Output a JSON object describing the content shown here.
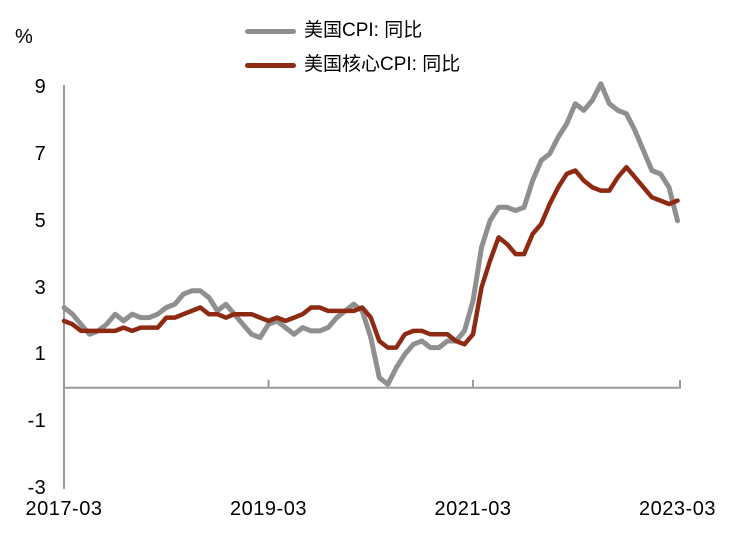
{
  "chart_data": {
    "type": "line",
    "title": "",
    "unit_label": "%",
    "xlabel": "",
    "ylabel": "%",
    "ylim": [
      -3,
      9
    ],
    "y_ticks": [
      9,
      7,
      5,
      3,
      1,
      -1,
      -3
    ],
    "x_tick_labels": [
      "2017-03",
      "2019-03",
      "2021-03",
      "2023-03"
    ],
    "x_tick_month_index": [
      0,
      24,
      48,
      72
    ],
    "x_range": "2017-03 to 2023-03, monthly",
    "grid": "off",
    "legend_position": "top-center",
    "axis_color": "#9b9b9b",
    "series": [
      {
        "name": "美国CPI: 同比",
        "color": "#8f8f8f",
        "stroke_width": 5,
        "values": [
          2.4,
          2.2,
          1.9,
          1.6,
          1.7,
          1.9,
          2.2,
          2.0,
          2.2,
          2.1,
          2.1,
          2.2,
          2.4,
          2.5,
          2.8,
          2.9,
          2.9,
          2.7,
          2.3,
          2.5,
          2.2,
          1.9,
          1.6,
          1.5,
          1.9,
          2.0,
          1.8,
          1.6,
          1.8,
          1.7,
          1.7,
          1.8,
          2.1,
          2.3,
          2.5,
          2.3,
          1.5,
          0.3,
          0.1,
          0.6,
          1.0,
          1.3,
          1.4,
          1.2,
          1.2,
          1.4,
          1.4,
          1.7,
          2.6,
          4.2,
          5.0,
          5.4,
          5.4,
          5.3,
          5.4,
          6.2,
          6.8,
          7.0,
          7.5,
          7.9,
          8.5,
          8.3,
          8.6,
          9.1,
          8.5,
          8.3,
          8.2,
          7.7,
          7.1,
          6.5,
          6.4,
          6.0,
          5.0
        ]
      },
      {
        "name": "美国核心CPI: 同比",
        "color": "#8e2a12",
        "stroke_width": 4.5,
        "values": [
          2.0,
          1.9,
          1.7,
          1.7,
          1.7,
          1.7,
          1.7,
          1.8,
          1.7,
          1.8,
          1.8,
          1.8,
          2.1,
          2.1,
          2.2,
          2.3,
          2.4,
          2.2,
          2.2,
          2.1,
          2.2,
          2.2,
          2.2,
          2.1,
          2.0,
          2.1,
          2.0,
          2.1,
          2.2,
          2.4,
          2.4,
          2.3,
          2.3,
          2.3,
          2.3,
          2.4,
          2.1,
          1.4,
          1.2,
          1.2,
          1.6,
          1.7,
          1.7,
          1.6,
          1.6,
          1.6,
          1.4,
          1.3,
          1.6,
          3.0,
          3.8,
          4.5,
          4.3,
          4.0,
          4.0,
          4.6,
          4.9,
          5.5,
          6.0,
          6.4,
          6.5,
          6.2,
          6.0,
          5.9,
          5.9,
          6.3,
          6.6,
          6.3,
          6.0,
          5.7,
          5.6,
          5.5,
          5.6
        ]
      }
    ]
  }
}
